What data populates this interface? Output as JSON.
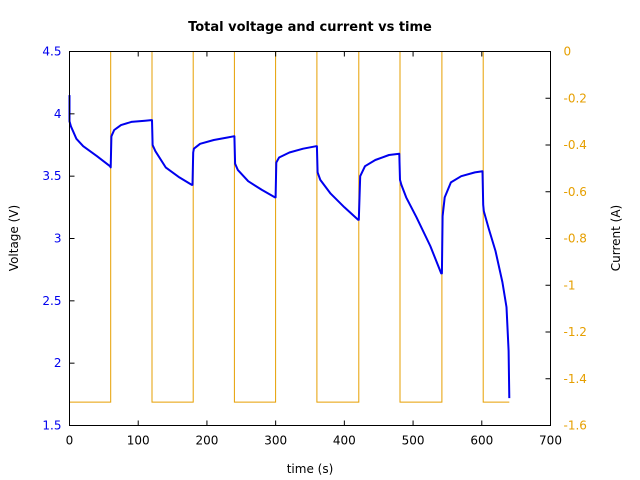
{
  "chart_data": {
    "type": "line",
    "title": "Total voltage and current vs time",
    "xlabel": "time (s)",
    "ylabel": "Voltage (V)",
    "y2label": "Current (A)",
    "xlim": [
      0,
      700
    ],
    "ylim": [
      1.5,
      4.5
    ],
    "y2lim": [
      -1.6,
      0
    ],
    "xticks": [
      0,
      100,
      200,
      300,
      400,
      500,
      600,
      700
    ],
    "yticks": [
      1.5,
      2,
      2.5,
      3,
      3.5,
      4,
      4.5
    ],
    "y2ticks": [
      0,
      -0.2,
      -0.4,
      -0.6,
      -0.8,
      -1,
      -1.2,
      -1.4,
      -1.6
    ],
    "xtick_labels": [
      "0",
      "100",
      "200",
      "300",
      "400",
      "500",
      "600",
      "700"
    ],
    "ytick_labels": [
      "1.5",
      "2",
      "2.5",
      "3",
      "3.5",
      "4",
      "4.5"
    ],
    "y2tick_labels": [
      "0",
      "-0.2",
      "-0.4",
      "-0.6",
      "-0.8",
      "-1",
      "-1.2",
      "-1.4",
      "-1.6"
    ],
    "grid": false,
    "legend": null,
    "colors": {
      "voltage": "#0000ee",
      "current": "#e69f00",
      "axis": "#000000"
    },
    "series": [
      {
        "name": "Voltage",
        "axis": "left",
        "color": "#0000ee",
        "x": [
          0,
          0,
          2,
          10,
          20,
          40,
          59,
          60,
          61,
          65,
          75,
          90,
          110,
          119,
          120,
          121,
          125,
          140,
          160,
          178,
          179,
          180,
          181,
          190,
          210,
          230,
          239,
          240,
          241,
          245,
          260,
          280,
          299,
          300,
          301,
          305,
          320,
          340,
          359,
          360,
          361,
          365,
          380,
          400,
          420,
          421,
          423,
          430,
          445,
          465,
          480,
          481,
          483,
          490,
          505,
          525,
          541,
          542,
          543,
          546,
          555,
          570,
          590,
          601,
          602,
          603,
          610,
          620,
          630,
          636,
          639,
          640
        ],
        "y": [
          4.15,
          3.94,
          3.9,
          3.8,
          3.74,
          3.66,
          3.58,
          3.57,
          3.82,
          3.87,
          3.91,
          3.935,
          3.945,
          3.95,
          3.95,
          3.75,
          3.7,
          3.57,
          3.49,
          3.43,
          3.43,
          3.69,
          3.72,
          3.76,
          3.79,
          3.81,
          3.82,
          3.82,
          3.6,
          3.55,
          3.46,
          3.39,
          3.33,
          3.33,
          3.61,
          3.65,
          3.69,
          3.72,
          3.74,
          3.74,
          3.53,
          3.47,
          3.36,
          3.25,
          3.15,
          3.15,
          3.5,
          3.58,
          3.63,
          3.67,
          3.68,
          3.47,
          3.43,
          3.33,
          3.17,
          2.94,
          2.72,
          2.72,
          3.18,
          3.33,
          3.45,
          3.5,
          3.53,
          3.54,
          3.27,
          3.22,
          3.08,
          2.9,
          2.65,
          2.45,
          2.1,
          1.72
        ]
      },
      {
        "name": "Current",
        "axis": "right",
        "color": "#e69f00",
        "x": [
          0,
          60,
          60,
          120,
          120,
          180,
          180,
          240,
          240,
          300,
          300,
          360,
          360,
          421,
          421,
          481,
          481,
          542,
          542,
          602,
          602,
          640
        ],
        "y": [
          -1.5,
          -1.5,
          0,
          0,
          -1.5,
          -1.5,
          0,
          0,
          -1.5,
          -1.5,
          0,
          0,
          -1.5,
          -1.5,
          0,
          0,
          -1.5,
          -1.5,
          0,
          0,
          -1.5,
          -1.5
        ]
      }
    ]
  }
}
